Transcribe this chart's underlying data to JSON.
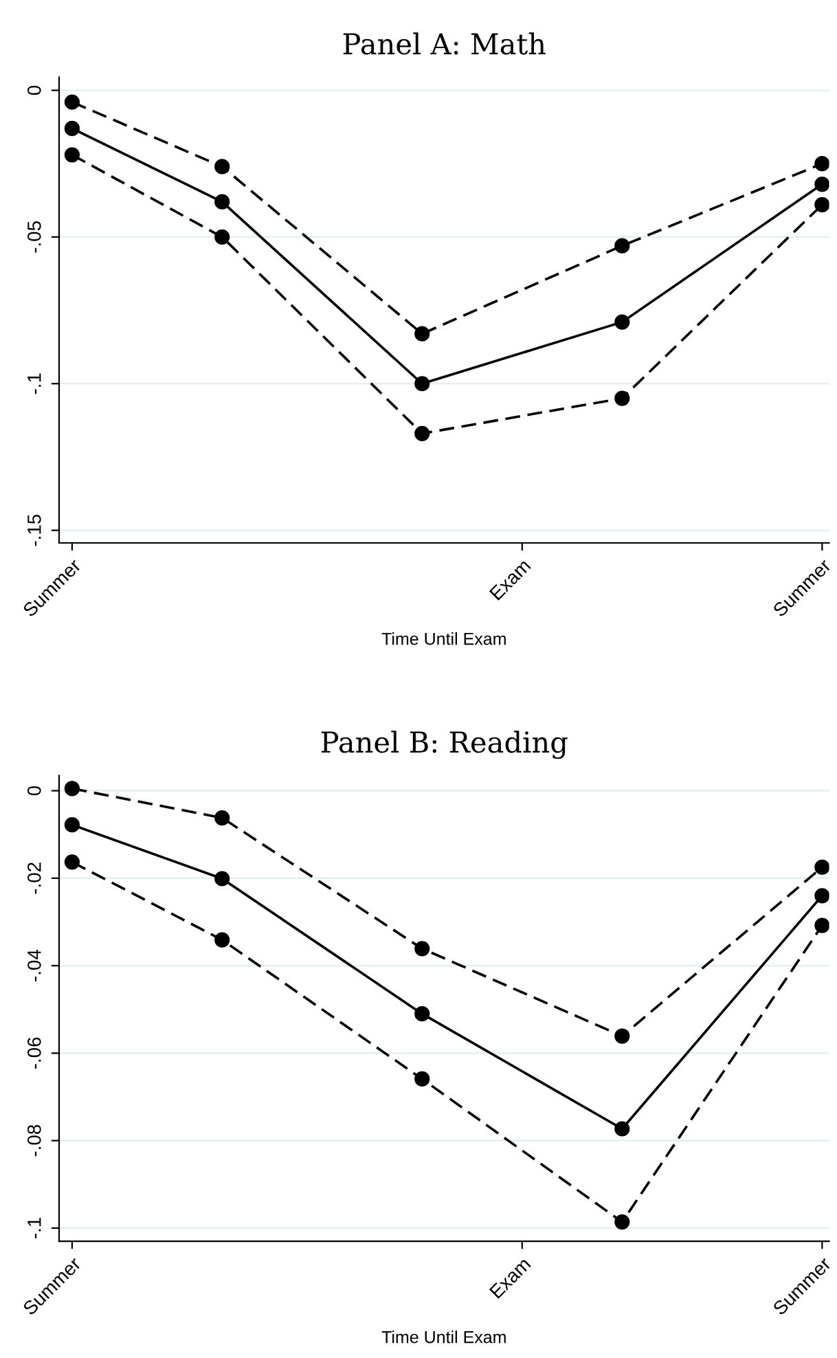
{
  "chart_data": [
    {
      "type": "line",
      "title": "Panel A: Math",
      "xlabel": "Time Until Exam",
      "categories": [
        "Summer",
        null,
        null,
        null,
        null,
        null,
        null,
        null,
        null,
        "Exam",
        null,
        null,
        null,
        null,
        null,
        "Summer"
      ],
      "ylim": [
        -0.1543,
        0.0045
      ],
      "yticks": [
        {
          "value": 0,
          "label": "0"
        },
        {
          "value": -0.05,
          "label": "-.05"
        },
        {
          "value": -0.1,
          "label": "-.1"
        },
        {
          "value": -0.15,
          "label": "-.15"
        }
      ],
      "grid": "y",
      "marker": "circle",
      "series": [
        {
          "color": "#000000",
          "line_style": "dashed",
          "values": [
            -0.004,
            null,
            null,
            -0.026,
            null,
            null,
            null,
            -0.083,
            null,
            null,
            null,
            -0.053,
            null,
            null,
            null,
            -0.025
          ]
        },
        {
          "color": "#000000",
          "line_style": "solid",
          "values": [
            -0.013,
            null,
            null,
            -0.038,
            null,
            null,
            null,
            -0.1,
            null,
            null,
            null,
            -0.079,
            null,
            null,
            null,
            -0.032
          ]
        },
        {
          "color": "#000000",
          "line_style": "dashed",
          "values": [
            -0.022,
            null,
            null,
            -0.05,
            null,
            null,
            null,
            -0.117,
            null,
            null,
            null,
            -0.105,
            null,
            null,
            null,
            -0.039
          ]
        }
      ]
    },
    {
      "type": "line",
      "title": "Panel B: Reading",
      "xlabel": "Time Until Exam",
      "categories": [
        "Summer",
        null,
        null,
        null,
        null,
        null,
        null,
        null,
        null,
        "Exam",
        null,
        null,
        null,
        null,
        null,
        "Summer"
      ],
      "ylim": [
        -0.103,
        0.0035
      ],
      "yticks": [
        {
          "value": 0,
          "label": "0"
        },
        {
          "value": -0.02,
          "label": "-.02"
        },
        {
          "value": -0.04,
          "label": "-.04"
        },
        {
          "value": -0.06,
          "label": "-.06"
        },
        {
          "value": -0.08,
          "label": "-.08"
        },
        {
          "value": -0.1,
          "label": "-.1"
        }
      ],
      "grid": "y",
      "marker": "circle",
      "series": [
        {
          "color": "#000000",
          "line_style": "dashed",
          "values": [
            0.0005,
            null,
            null,
            -0.0062,
            null,
            null,
            null,
            -0.0361,
            null,
            null,
            null,
            -0.0561,
            null,
            null,
            null,
            -0.0175
          ]
        },
        {
          "color": "#000000",
          "line_style": "solid",
          "values": [
            -0.0078,
            null,
            null,
            -0.0201,
            null,
            null,
            null,
            -0.051,
            null,
            null,
            null,
            -0.0773,
            null,
            null,
            null,
            -0.024
          ]
        },
        {
          "color": "#000000",
          "line_style": "dashed",
          "values": [
            -0.0163,
            null,
            null,
            -0.0341,
            null,
            null,
            null,
            -0.0659,
            null,
            null,
            null,
            -0.0986,
            null,
            null,
            null,
            -0.0308
          ]
        }
      ]
    }
  ]
}
